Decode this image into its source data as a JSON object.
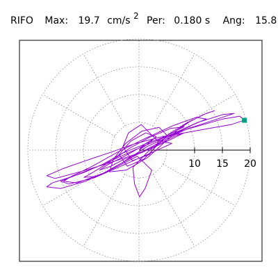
{
  "header": {
    "station": "RIFO",
    "max_label": "Max:",
    "max_value": "19.7",
    "max_unit_base": "cm/s",
    "max_unit_exp": "2",
    "per_label": "Per:",
    "per_value": "0.180 s",
    "ang_label": "Ang:",
    "ang_value": "15.8"
  },
  "chart_data": {
    "type": "scatter",
    "title": "RIFO  Max: 19.7 cm/s²  Per: 0.180 s  Ang: 15.8",
    "xlabel": "",
    "ylabel": "",
    "r_ticks": [
      10,
      15,
      20
    ],
    "r_tick_labels": [
      "10",
      "15",
      "20"
    ],
    "r_gridlines": [
      5,
      10,
      15,
      20
    ],
    "r_max": 20,
    "angle_gridlines_deg": [
      0,
      30,
      60,
      90,
      120,
      150,
      180,
      210,
      240,
      270,
      300,
      330
    ],
    "grid": true,
    "peak": {
      "r": 19.7,
      "angle_deg": 15.8,
      "color": "#00a080"
    },
    "series": [
      {
        "color": "#9400d3",
        "points": [
          [
            0.0,
            0.0
          ],
          [
            1.6,
            1.1
          ],
          [
            3.1,
            2.4
          ],
          [
            1.2,
            3.1
          ],
          [
            -1.5,
            1.6
          ],
          [
            -3.6,
            -0.8
          ],
          [
            -2.1,
            -2.9
          ],
          [
            0.9,
            -1.6
          ],
          [
            3.3,
            0.9
          ],
          [
            5.1,
            2.6
          ],
          [
            3.6,
            4.1
          ],
          [
            0.5,
            3.4
          ],
          [
            -2.4,
            1.2
          ],
          [
            -4.6,
            -1.6
          ],
          [
            -5.3,
            -3.9
          ],
          [
            -2.3,
            -3.6
          ],
          [
            1.6,
            -1.3
          ],
          [
            4.6,
            1.4
          ],
          [
            6.9,
            3.6
          ],
          [
            8.1,
            4.2
          ],
          [
            5.7,
            3.9
          ],
          [
            1.9,
            2.3
          ],
          [
            -1.6,
            0.4
          ],
          [
            -4.9,
            -1.9
          ],
          [
            -8.1,
            -3.9
          ],
          [
            -9.9,
            -4.9
          ],
          [
            -7.4,
            -4.7
          ],
          [
            -3.1,
            -2.3
          ],
          [
            1.4,
            0.6
          ],
          [
            5.9,
            2.7
          ],
          [
            9.8,
            4.6
          ],
          [
            12.1,
            5.6
          ],
          [
            10.3,
            5.9
          ],
          [
            6.1,
            4.4
          ],
          [
            1.1,
            2.1
          ],
          [
            -3.9,
            -0.4
          ],
          [
            -8.4,
            -2.9
          ],
          [
            -12.1,
            -4.7
          ],
          [
            -13.6,
            -5.6
          ],
          [
            -11.1,
            -5.9
          ],
          [
            -6.3,
            -4.1
          ],
          [
            -0.9,
            -1.1
          ],
          [
            4.1,
            1.6
          ],
          [
            8.6,
            3.8
          ],
          [
            12.6,
            5.1
          ],
          [
            15.6,
            6.1
          ],
          [
            17.1,
            6.6
          ],
          [
            15.1,
            6.4
          ],
          [
            10.6,
            5.0
          ],
          [
            5.1,
            2.5
          ],
          [
            -0.6,
            0.1
          ],
          [
            -6.1,
            -2.4
          ],
          [
            -11.1,
            -4.4
          ],
          [
            -14.1,
            -5.6
          ],
          [
            -12.6,
            -6.1
          ],
          [
            -8.1,
            -5.0
          ],
          [
            -2.6,
            -2.6
          ],
          [
            2.6,
            -0.3
          ],
          [
            5.9,
            1.2
          ],
          [
            3.3,
            1.7
          ],
          [
            0.4,
            4.6
          ],
          [
            -1.9,
            3.1
          ],
          [
            -2.9,
            0.6
          ],
          [
            -1.2,
            -1.9
          ],
          [
            1.9,
            -0.8
          ],
          [
            3.9,
            2.1
          ],
          [
            6.4,
            3.3
          ],
          [
            9.1,
            5.1
          ],
          [
            11.6,
            6.4
          ],
          [
            13.6,
            7.1
          ],
          [
            12.1,
            6.6
          ],
          [
            8.6,
            4.9
          ],
          [
            4.6,
            2.4
          ],
          [
            0.6,
            0.9
          ],
          [
            -3.1,
            -0.6
          ],
          [
            -6.6,
            -2.6
          ],
          [
            -10.1,
            -4.1
          ],
          [
            -13.1,
            -5.1
          ],
          [
            -15.6,
            -5.9
          ],
          [
            -16.6,
            -6.6
          ],
          [
            -14.1,
            -6.9
          ],
          [
            -9.6,
            -5.6
          ],
          [
            -4.6,
            -3.3
          ],
          [
            -0.3,
            -1.1
          ],
          [
            2.3,
            -3.6
          ],
          [
            1.1,
            -6.9
          ],
          [
            0.1,
            -8.4
          ],
          [
            -0.8,
            -6.1
          ],
          [
            -1.1,
            -3.1
          ],
          [
            1.6,
            -0.3
          ],
          [
            4.6,
            2.1
          ],
          [
            8.1,
            3.6
          ],
          [
            11.6,
            4.6
          ],
          [
            15.1,
            5.6
          ],
          [
            18.1,
            6.1
          ],
          [
            19.0,
            5.4
          ],
          [
            16.6,
            4.6
          ],
          [
            12.6,
            3.9
          ],
          [
            8.1,
            3.1
          ],
          [
            3.6,
            2.3
          ],
          [
            -0.9,
            1.1
          ],
          [
            -5.1,
            -0.4
          ],
          [
            -9.6,
            -1.9
          ],
          [
            -13.6,
            -3.3
          ],
          [
            -16.6,
            -4.6
          ],
          [
            -15.1,
            -5.1
          ],
          [
            -10.6,
            -3.9
          ],
          [
            -5.6,
            -2.4
          ],
          [
            -1.1,
            -0.9
          ],
          [
            2.9,
            0.6
          ],
          [
            6.1,
            2.1
          ],
          [
            8.1,
            3.1
          ],
          [
            6.6,
            2.6
          ],
          [
            3.6,
            1.1
          ],
          [
            0.6,
            -0.4
          ],
          [
            -2.6,
            -1.6
          ],
          [
            -5.1,
            -2.9
          ],
          [
            -7.1,
            -3.6
          ],
          [
            -5.6,
            -2.6
          ],
          [
            -2.6,
            -1.1
          ],
          [
            0.4,
            0.6
          ],
          [
            2.4,
            1.9
          ],
          [
            1.1,
            1.1
          ],
          [
            0.0,
            0.0
          ]
        ]
      }
    ]
  }
}
